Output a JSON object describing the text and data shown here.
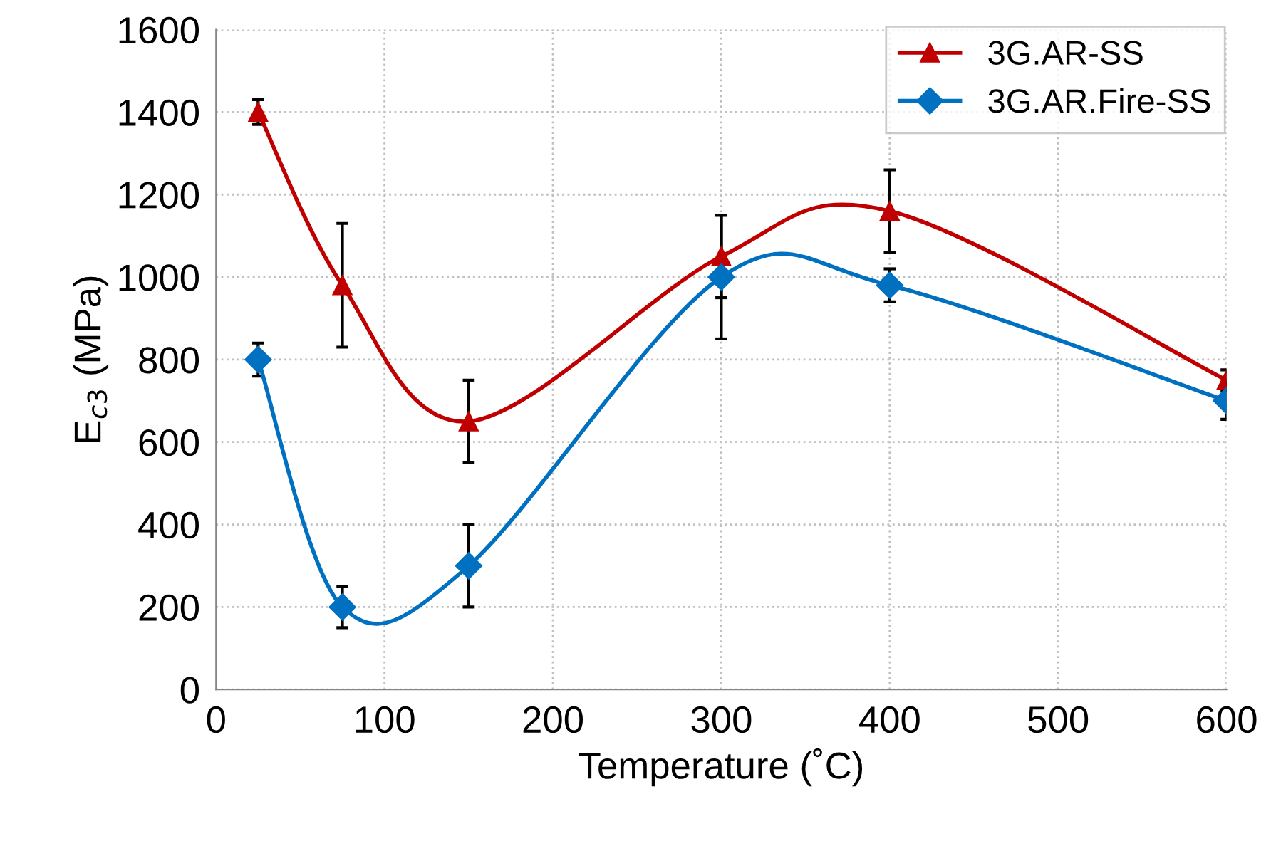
{
  "chart_data": {
    "type": "line",
    "xlabel": "Temperature (˚C)",
    "ylabel": "E$_{c3}$ (MPa)",
    "xlim": [
      0,
      600
    ],
    "xticks": [
      0,
      100,
      200,
      300,
      400,
      500,
      600
    ],
    "ylim": [
      0,
      1600
    ],
    "yticks": [
      0,
      200,
      400,
      600,
      800,
      1000,
      1200,
      1400,
      1600
    ],
    "grid": true,
    "legend": "top right",
    "line_style": "solid",
    "series": [
      {
        "name": "3G.AR-SS",
        "color": "#c00000",
        "marker": "triangle",
        "x": [
          25,
          75,
          150,
          300,
          400,
          600
        ],
        "values": [
          1400,
          980,
          650,
          1050,
          1160,
          750
        ],
        "errors": [
          30,
          150,
          100,
          100,
          100,
          25
        ]
      },
      {
        "name": "3G.AR.Fire-SS",
        "color": "#0070c0",
        "marker": "diamond",
        "x": [
          25,
          75,
          150,
          300,
          400,
          600
        ],
        "values": [
          800,
          200,
          300,
          1000,
          980,
          700
        ],
        "errors": [
          40,
          50,
          100,
          150,
          40,
          45
        ]
      }
    ]
  }
}
